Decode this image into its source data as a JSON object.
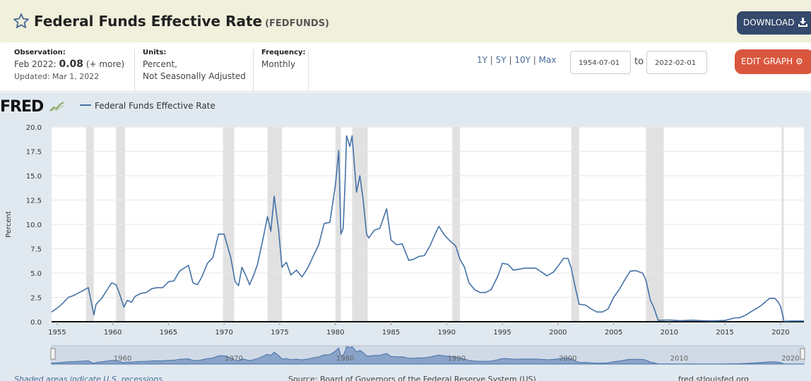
{
  "header": {
    "title": "Federal Funds Effective Rate",
    "series_code": "(FEDFUNDS)",
    "download_label": "DOWNLOAD"
  },
  "info": {
    "observation_label": "Observation:",
    "observation_period": "Feb 2022:",
    "observation_value": "0.08",
    "observation_more": "(+ more)",
    "updated": "Updated: Mar 1, 2022",
    "units_label": "Units:",
    "units_line1": "Percent,",
    "units_line2": "Not Seasonally Adjusted",
    "frequency_label": "Frequency:",
    "frequency_value": "Monthly"
  },
  "controls": {
    "range_1y": "1Y",
    "range_5y": "5Y",
    "range_10y": "10Y",
    "range_max": "Max",
    "sep": "|",
    "start_date": "1954-07-01",
    "to_label": "to",
    "end_date": "2022-02-01",
    "edit_label": "EDIT GRAPH"
  },
  "graph": {
    "logo_text": "FRED",
    "legend_label": "Federal Funds Effective Rate"
  },
  "footer": {
    "recession_note": "Shaded areas indicate U.S. recessions",
    "source": "Source: Board of Governors of the Federal Reserve System (US)",
    "site": "fred.stlouisfed.org"
  },
  "colors": {
    "series_line": "#4572a7",
    "recession_shade": "#e1e1e1",
    "download_bg": "#34496b",
    "edit_bg": "#d9563d",
    "header_bg": "#f0f0dc"
  },
  "chart_data": {
    "type": "line",
    "title": "Federal Funds Effective Rate",
    "xlabel": "",
    "ylabel": "Percent",
    "xlim": [
      1954.5,
      2022.1
    ],
    "ylim": [
      0,
      20
    ],
    "y_ticks": [
      0,
      2.5,
      5,
      7.5,
      10,
      12.5,
      15,
      17.5,
      20
    ],
    "y_tick_labels": [
      "0.0",
      "2.5",
      "5.0",
      "7.5",
      "10.0",
      "12.5",
      "15.0",
      "17.5",
      "20.0"
    ],
    "x_ticks": [
      1955,
      1960,
      1965,
      1970,
      1975,
      1980,
      1985,
      1990,
      1995,
      2000,
      2005,
      2010,
      2015,
      2020
    ],
    "navigator_labels": [
      "1960",
      "1970",
      "1980",
      "1990",
      "2000",
      "2010",
      "2020"
    ],
    "recessions": [
      [
        1957.6,
        1958.3
      ],
      [
        1960.3,
        1961.1
      ],
      [
        1969.9,
        1970.9
      ],
      [
        1973.9,
        1975.2
      ],
      [
        1980.0,
        1980.5
      ],
      [
        1981.5,
        1982.9
      ],
      [
        1990.5,
        1991.2
      ],
      [
        2001.2,
        2001.9
      ],
      [
        2007.9,
        2009.5
      ],
      [
        2020.1,
        2020.3
      ]
    ],
    "series": [
      {
        "name": "Federal Funds Effective Rate",
        "x": [
          1954.5,
          1955.0,
          1955.5,
          1956.0,
          1956.5,
          1957.0,
          1957.8,
          1958.3,
          1958.5,
          1959.0,
          1959.5,
          1959.9,
          1960.3,
          1960.6,
          1961.0,
          1961.3,
          1961.7,
          1962.0,
          1962.5,
          1963.0,
          1963.5,
          1964.0,
          1964.5,
          1965.0,
          1965.5,
          1966.0,
          1966.8,
          1967.2,
          1967.6,
          1968.0,
          1968.5,
          1969.0,
          1969.5,
          1970.0,
          1970.3,
          1970.6,
          1971.0,
          1971.3,
          1971.6,
          1971.9,
          1972.3,
          1972.7,
          1973.0,
          1973.5,
          1973.9,
          1974.2,
          1974.5,
          1974.9,
          1975.2,
          1975.6,
          1976.0,
          1976.5,
          1977.0,
          1977.5,
          1978.0,
          1978.5,
          1979.0,
          1979.5,
          1980.0,
          1980.3,
          1980.5,
          1980.7,
          1980.9,
          1981.0,
          1981.3,
          1981.5,
          1981.9,
          1982.2,
          1982.5,
          1982.8,
          1983.0,
          1983.5,
          1984.0,
          1984.6,
          1985.0,
          1985.5,
          1986.0,
          1986.6,
          1987.0,
          1987.5,
          1988.0,
          1988.5,
          1989.0,
          1989.3,
          1989.8,
          1990.3,
          1990.8,
          1991.2,
          1991.6,
          1992.0,
          1992.5,
          1993.0,
          1993.5,
          1994.0,
          1994.6,
          1995.0,
          1995.5,
          1996.0,
          1997.0,
          1998.0,
          1998.8,
          1999.0,
          1999.6,
          2000.0,
          2000.5,
          2000.9,
          2001.2,
          2001.5,
          2001.9,
          2002.5,
          2003.0,
          2003.5,
          2004.0,
          2004.5,
          2005.0,
          2005.5,
          2006.0,
          2006.5,
          2007.0,
          2007.6,
          2007.9,
          2008.3,
          2008.6,
          2008.9,
          2009.0,
          2010.0,
          2011.0,
          2012.0,
          2013.0,
          2014.0,
          2015.0,
          2015.9,
          2016.3,
          2016.9,
          2017.3,
          2017.9,
          2018.3,
          2018.8,
          2019.0,
          2019.5,
          2019.8,
          2020.0,
          2020.2,
          2020.3,
          2021.0,
          2022.0,
          2022.1
        ],
        "values": [
          1.0,
          1.4,
          1.9,
          2.5,
          2.7,
          3.0,
          3.5,
          0.7,
          1.8,
          2.4,
          3.3,
          4.0,
          3.8,
          2.9,
          1.5,
          2.2,
          2.0,
          2.6,
          2.9,
          3.0,
          3.4,
          3.5,
          3.5,
          4.1,
          4.2,
          5.2,
          5.8,
          4.0,
          3.8,
          4.6,
          6.0,
          6.6,
          9.0,
          9.0,
          7.8,
          6.6,
          4.1,
          3.7,
          5.6,
          4.9,
          3.8,
          4.9,
          5.9,
          8.5,
          10.8,
          9.3,
          12.9,
          9.4,
          5.6,
          6.1,
          4.8,
          5.3,
          4.6,
          5.5,
          6.7,
          7.9,
          10.1,
          10.2,
          14.0,
          17.6,
          9.0,
          9.6,
          15.0,
          19.1,
          18.0,
          19.1,
          13.3,
          15.0,
          12.5,
          9.0,
          8.6,
          9.4,
          9.6,
          11.6,
          8.4,
          7.9,
          8.0,
          6.3,
          6.4,
          6.7,
          6.8,
          7.8,
          9.1,
          9.8,
          8.9,
          8.3,
          7.8,
          6.4,
          5.6,
          4.0,
          3.3,
          3.0,
          3.0,
          3.3,
          4.7,
          6.0,
          5.9,
          5.3,
          5.5,
          5.5,
          4.9,
          4.7,
          5.1,
          5.7,
          6.5,
          6.5,
          5.5,
          3.8,
          1.8,
          1.7,
          1.3,
          1.0,
          1.0,
          1.3,
          2.5,
          3.3,
          4.3,
          5.2,
          5.25,
          5.0,
          4.3,
          2.2,
          1.5,
          0.5,
          0.15,
          0.18,
          0.1,
          0.16,
          0.11,
          0.09,
          0.13,
          0.4,
          0.4,
          0.7,
          1.0,
          1.4,
          1.7,
          2.2,
          2.4,
          2.4,
          2.0,
          1.55,
          0.65,
          0.05,
          0.08,
          0.08,
          0.08
        ]
      }
    ]
  }
}
